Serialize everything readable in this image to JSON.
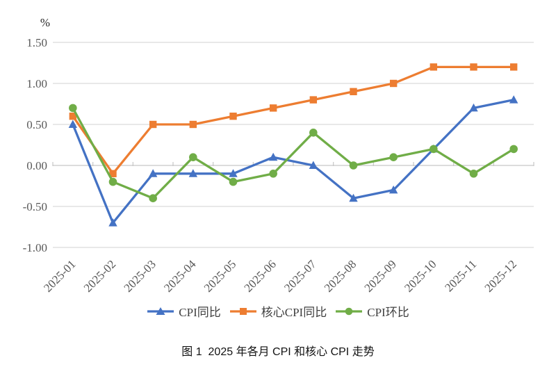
{
  "chart_data": {
    "type": "line",
    "title": "",
    "unit_label": "%",
    "categories": [
      "2025-01",
      "2025-02",
      "2025-03",
      "2025-04",
      "2025-05",
      "2025-06",
      "2025-07",
      "2025-08",
      "2025-09",
      "2025-10",
      "2025-11",
      "2025-12"
    ],
    "series": [
      {
        "name": "CPI同比",
        "color": "#4472C4",
        "marker": "triangle",
        "values": [
          0.5,
          -0.7,
          -0.1,
          -0.1,
          -0.1,
          0.1,
          0.0,
          -0.4,
          -0.3,
          0.2,
          0.7,
          0.8
        ]
      },
      {
        "name": "核心CPI同比",
        "color": "#ED7D31",
        "marker": "square",
        "values": [
          0.6,
          -0.1,
          0.5,
          0.5,
          0.6,
          0.7,
          0.8,
          0.9,
          1.0,
          1.2,
          1.2,
          1.2
        ]
      },
      {
        "name": "CPI环比",
        "color": "#70AD47",
        "marker": "circle",
        "values": [
          0.7,
          -0.2,
          -0.4,
          0.1,
          -0.2,
          -0.1,
          0.4,
          0.0,
          0.1,
          0.2,
          -0.1,
          0.2
        ]
      }
    ],
    "y_axis": {
      "min": -1.0,
      "max": 1.5,
      "step": 0.5,
      "tick_labels": [
        "1.50",
        "1.00",
        "0.50",
        "0.00",
        "-0.50",
        "-1.00"
      ],
      "tick_values": [
        1.5,
        1.0,
        0.5,
        0.0,
        -0.5,
        -1.0
      ]
    },
    "grid": true,
    "legend_position": "bottom"
  },
  "caption": "图 1  2025 年各月 CPI 和核心 CPI 走势",
  "colors": {
    "gridline": "#D9D9D9",
    "axis": "#C6C6C6",
    "tick_text": "#595959",
    "unit_text": "#262626",
    "legend_text": "#404040",
    "caption_text": "#111111",
    "background": "#FFFFFF"
  }
}
